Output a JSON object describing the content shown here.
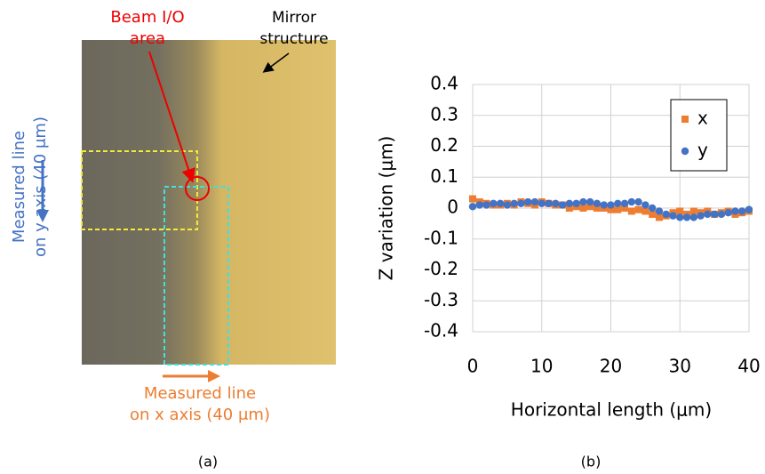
{
  "panel_a": {
    "beam_label": [
      "Beam I/O",
      "area"
    ],
    "mirror_label": [
      "Mirror",
      "structure"
    ],
    "y_line_label": [
      "Measured line",
      "on y axis (40 μm)"
    ],
    "x_line_label": [
      "Measured line",
      "on x axis (40 μm)"
    ]
  },
  "captions": [
    "(a)",
    "(b)"
  ],
  "chart_data": {
    "type": "scatter",
    "xlabel": "Horizontal length (μm)",
    "ylabel": "Z variation (μm)",
    "x": [
      0,
      1,
      2,
      3,
      4,
      5,
      6,
      7,
      8,
      9,
      10,
      11,
      12,
      13,
      14,
      15,
      16,
      17,
      18,
      19,
      20,
      21,
      22,
      23,
      24,
      25,
      26,
      27,
      28,
      29,
      30,
      31,
      32,
      33,
      34,
      35,
      36,
      37,
      38,
      39,
      40
    ],
    "series": [
      {
        "name": "x",
        "color": "#ed7d31",
        "marker": "square",
        "values": [
          0.03,
          0.02,
          0.015,
          0.01,
          0.01,
          0.015,
          0.01,
          0.02,
          0.015,
          0.01,
          0.02,
          0.015,
          0.01,
          0.01,
          0.0,
          0.005,
          0.0,
          0.005,
          0.0,
          0.0,
          -0.005,
          -0.005,
          0.0,
          -0.01,
          -0.005,
          -0.01,
          -0.02,
          -0.03,
          -0.025,
          -0.015,
          -0.01,
          -0.02,
          -0.01,
          -0.015,
          -0.01,
          -0.02,
          -0.015,
          -0.01,
          -0.02,
          -0.015,
          -0.01
        ]
      },
      {
        "name": "y",
        "color": "#4472c4",
        "marker": "circle",
        "values": [
          0.005,
          0.01,
          0.01,
          0.015,
          0.015,
          0.01,
          0.015,
          0.015,
          0.02,
          0.02,
          0.015,
          0.015,
          0.015,
          0.01,
          0.015,
          0.015,
          0.02,
          0.02,
          0.015,
          0.01,
          0.01,
          0.015,
          0.015,
          0.02,
          0.02,
          0.01,
          0.0,
          -0.01,
          -0.02,
          -0.025,
          -0.03,
          -0.03,
          -0.03,
          -0.025,
          -0.02,
          -0.02,
          -0.02,
          -0.015,
          -0.01,
          -0.01,
          -0.005
        ]
      }
    ],
    "xlim": [
      0,
      40
    ],
    "xticks": [
      0,
      10,
      20,
      30,
      40
    ],
    "ylim": [
      -0.4,
      0.4
    ],
    "yticks": [
      0.4,
      0.3,
      0.2,
      0.1,
      0,
      -0.1,
      -0.2,
      -0.3,
      -0.4
    ],
    "grid": true,
    "legend": "upper right"
  }
}
